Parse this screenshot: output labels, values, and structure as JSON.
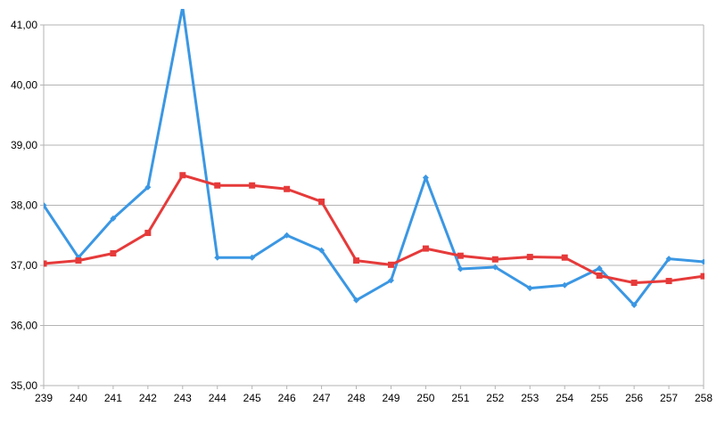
{
  "chart_data": {
    "type": "line",
    "title": "",
    "xlabel": "",
    "ylabel": "",
    "categories": [
      "239",
      "240",
      "241",
      "242",
      "243",
      "244",
      "245",
      "246",
      "247",
      "248",
      "249",
      "250",
      "251",
      "252",
      "253",
      "254",
      "255",
      "256",
      "257",
      "258"
    ],
    "ylim": [
      35,
      41
    ],
    "y_ticks": [
      35,
      36,
      37,
      38,
      39,
      40,
      41
    ],
    "y_tick_labels": [
      "35,00",
      "36,00",
      "37,00",
      "38,00",
      "39,00",
      "40,00",
      "41,00"
    ],
    "grid": true,
    "legend": "none",
    "series": [
      {
        "color": "#3b97e3",
        "marker": "diamond",
        "values": [
          38.0,
          37.13,
          37.78,
          38.3,
          41.3,
          37.13,
          37.13,
          37.5,
          37.25,
          36.42,
          36.75,
          38.46,
          36.94,
          36.97,
          36.62,
          36.67,
          36.95,
          36.34,
          37.11,
          37.06
        ]
      },
      {
        "color": "#e63a3a",
        "marker": "square",
        "values": [
          37.03,
          37.08,
          37.2,
          37.54,
          38.5,
          38.33,
          38.33,
          38.27,
          38.06,
          37.08,
          37.01,
          37.28,
          37.16,
          37.1,
          37.14,
          37.13,
          36.83,
          36.71,
          36.74,
          36.82
        ]
      }
    ]
  }
}
